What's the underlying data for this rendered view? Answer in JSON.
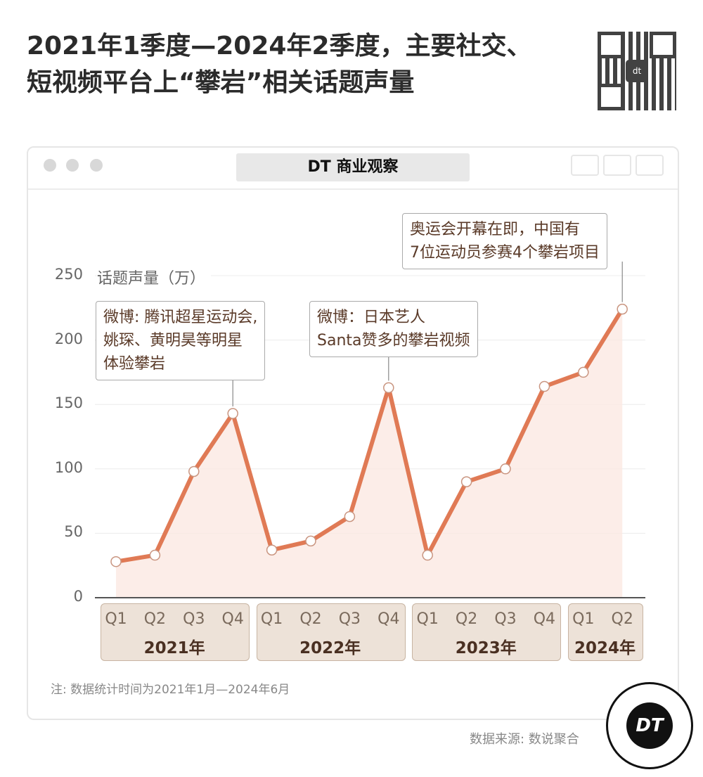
{
  "title_line1": "2021年1季度—2024年2季度，主要社交、",
  "title_line2": "短视频平台上“攀岩”相关话题声量",
  "brand": "DT 商业观察",
  "note": "注: 数据统计时间为2021年1月—2024年6月",
  "source": "数据来源: 数说聚合",
  "logo_text": "DT",
  "qr_center_text": "dt",
  "colors": {
    "line": "#e07a55",
    "fill": "#fbe9e2",
    "year_box": "#ede2d8"
  },
  "chart_data": {
    "type": "line",
    "title": "2021年1季度—2024年2季度，主要社交、短视频平台上“攀岩”相关话题声量",
    "ylabel": "话题声量（万）",
    "ylim": [
      0,
      250
    ],
    "yticks": [
      0,
      50,
      100,
      150,
      200,
      250
    ],
    "grid": true,
    "categories": [
      "Q1",
      "Q2",
      "Q3",
      "Q4",
      "Q1",
      "Q2",
      "Q3",
      "Q4",
      "Q1",
      "Q2",
      "Q3",
      "Q4",
      "Q1",
      "Q2"
    ],
    "years": [
      {
        "label": "2021年",
        "count": 4
      },
      {
        "label": "2022年",
        "count": 4
      },
      {
        "label": "2023年",
        "count": 4
      },
      {
        "label": "2024年",
        "count": 2
      }
    ],
    "values": [
      28,
      33,
      98,
      143,
      37,
      44,
      63,
      163,
      33,
      90,
      100,
      164,
      175,
      224
    ],
    "annotations": [
      {
        "index": 3,
        "text": "微博: 腾讯超星运动会,\n姚琛、黄明昊等明星\n体验攀岩"
      },
      {
        "index": 7,
        "text": "微博：日本艺人\nSanta赞多的攀岩视频"
      },
      {
        "index": 13,
        "text": "奥运会开幕在即，中国有\n7位运动员参赛4个攀岩项目"
      }
    ]
  }
}
